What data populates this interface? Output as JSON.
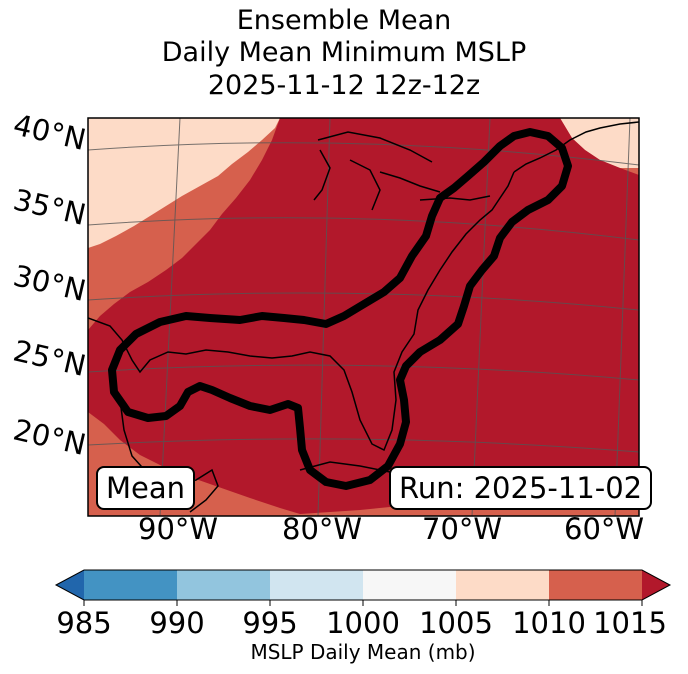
{
  "title": {
    "line1": "Ensemble Mean",
    "line2": "Daily Mean Minimum MSLP",
    "line3": "2025-11-12 12z-12z"
  },
  "map": {
    "lat_labels": [
      "40°N",
      "35°N",
      "30°N",
      "25°N",
      "20°N"
    ],
    "lon_labels": [
      "90°W",
      "80°W",
      "70°W",
      "60°W"
    ],
    "mean_box": "Mean",
    "run_box": "Run: 2025-11-02"
  },
  "colors": {
    "level_1015": "#b2182b",
    "level_1010": "#d6604d",
    "level_1005": "#fddbc7",
    "level_1000": "#f7f7f7",
    "level_995": "#d1e5f0",
    "level_990": "#92c5de",
    "level_985": "#4393c3",
    "under": "#2166ac",
    "contour": "#000000"
  },
  "colorbar": {
    "ticks": [
      "985",
      "990",
      "995",
      "1000",
      "1005",
      "1010",
      "1015"
    ],
    "label": "MSLP Daily Mean (mb)"
  }
}
